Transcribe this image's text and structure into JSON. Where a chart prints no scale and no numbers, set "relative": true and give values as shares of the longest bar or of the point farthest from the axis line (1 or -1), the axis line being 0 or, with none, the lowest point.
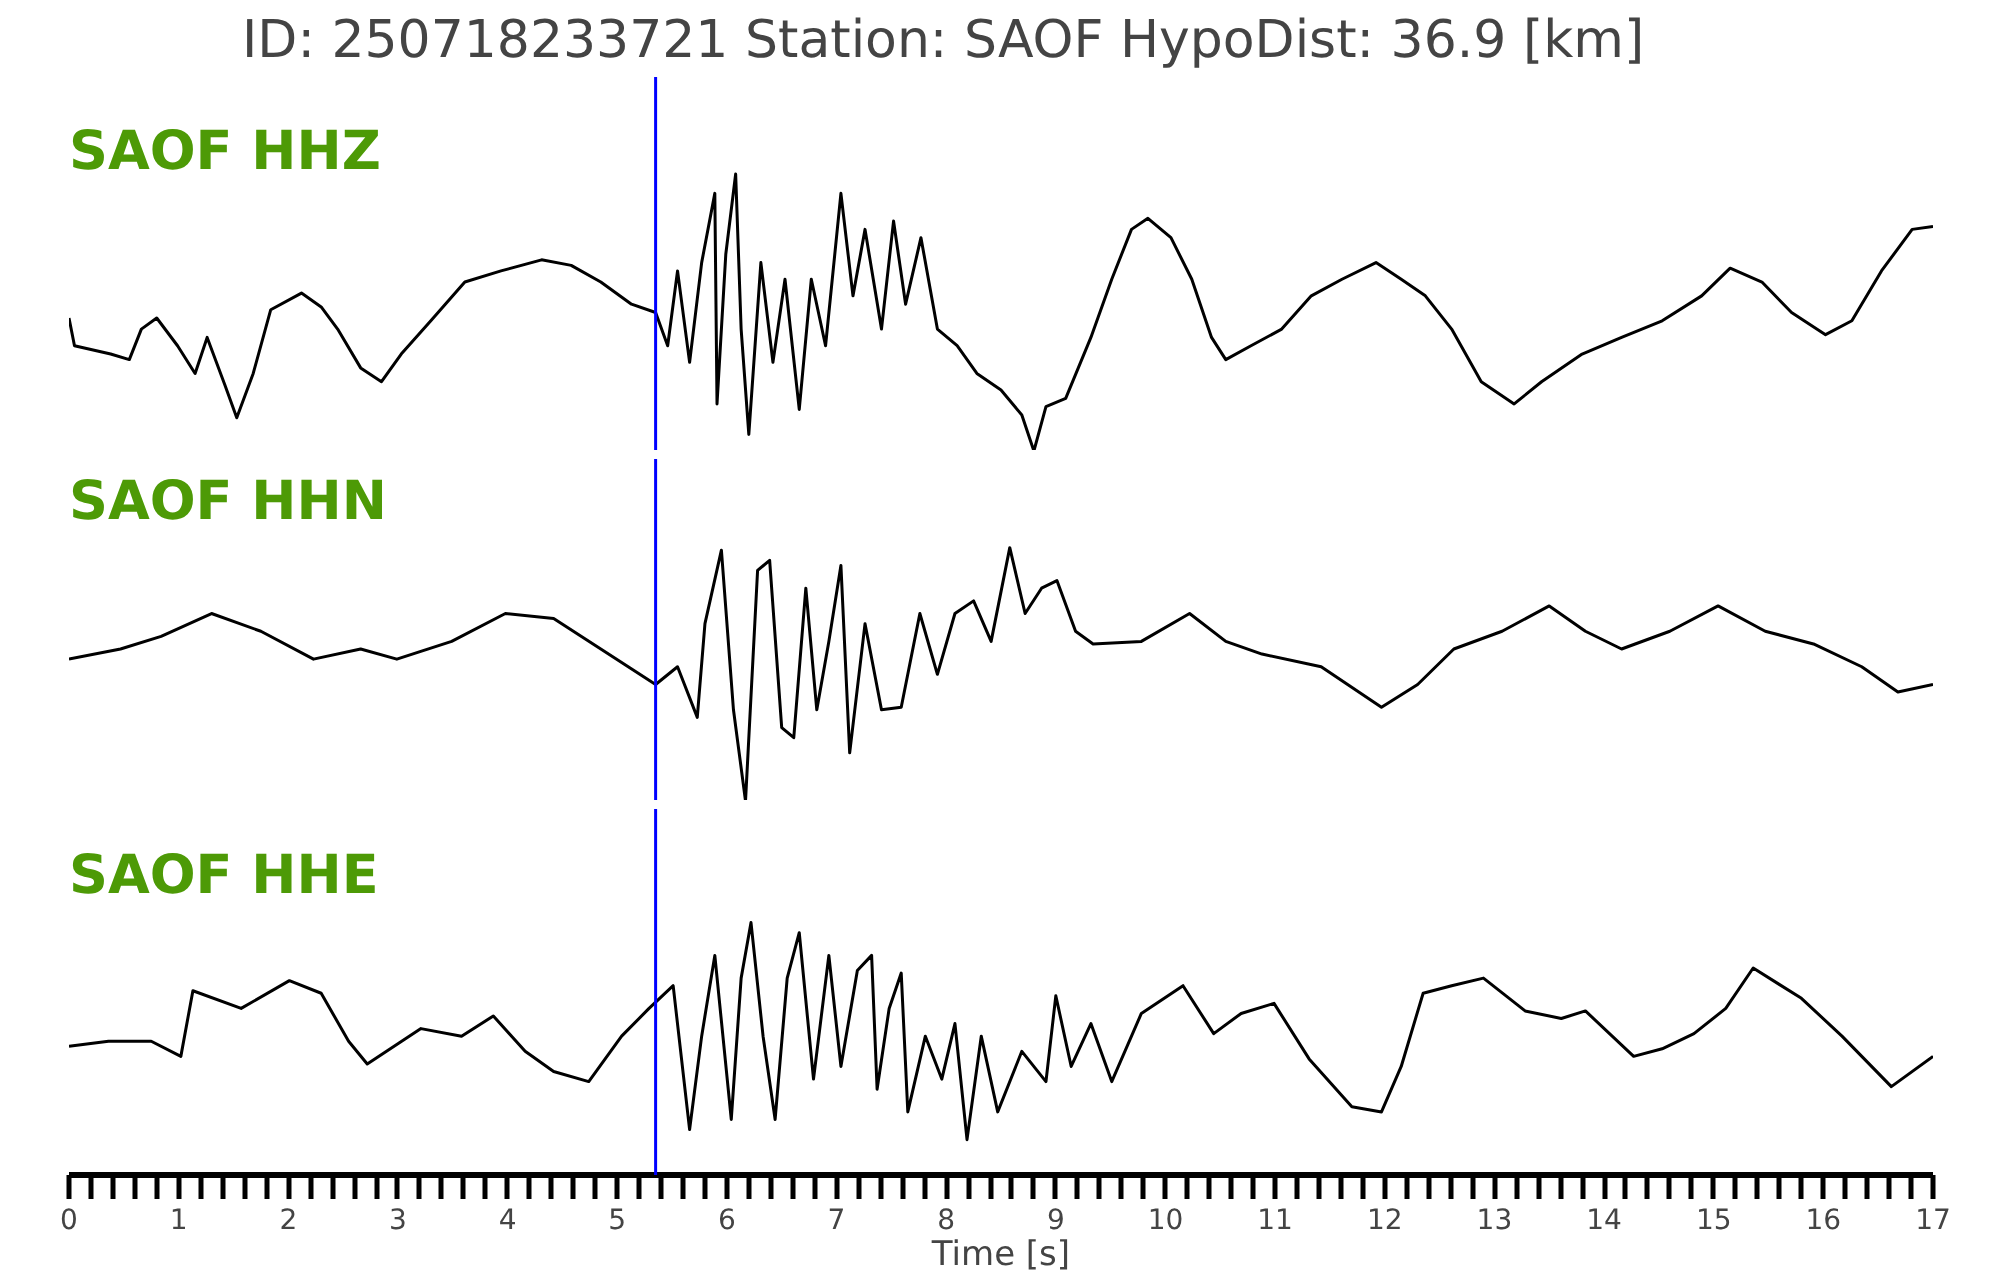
{
  "chart_data": [
    {
      "type": "line",
      "title": "ID: 250718233721   Station: SAOF   HypoDist:    36.9 [km]",
      "relative": true,
      "xlim": [
        0,
        17
      ],
      "tick_labels": false,
      "line_style": "solid",
      "marker": "none",
      "grid": false,
      "annotations": [
        "SAOF HHZ"
      ],
      "ref_lines": [
        {
          "axis": "x",
          "value": 5.35,
          "color": "#0000ff"
        }
      ],
      "series": [
        {
          "color": "#000000",
          "x": [
            0.0,
            0.05,
            0.38,
            0.55,
            0.66,
            0.8,
            0.99,
            1.15,
            1.26,
            1.42,
            1.53,
            1.68,
            1.84,
            2.12,
            2.3,
            2.45,
            2.66,
            2.85,
            3.03,
            3.3,
            3.61,
            3.94,
            4.31,
            4.58,
            4.85,
            5.13,
            5.35,
            5.46,
            5.55,
            5.66,
            5.77,
            5.89,
            5.91,
            5.99,
            6.08,
            6.13,
            6.2,
            6.31,
            6.42,
            6.53,
            6.66,
            6.77,
            6.9,
            7.04,
            7.15,
            7.26,
            7.41,
            7.52,
            7.63,
            7.77,
            7.92,
            8.1,
            8.28,
            8.5,
            8.69,
            8.8,
            8.91,
            9.09,
            9.32,
            9.51,
            9.69,
            9.84,
            10.05,
            10.24,
            10.42,
            10.55,
            10.78,
            11.06,
            11.33,
            11.61,
            11.92,
            12.15,
            12.37,
            12.61,
            12.88,
            13.18,
            13.43,
            13.8,
            14.16,
            14.53,
            14.89,
            15.15,
            15.44,
            15.71,
            16.02,
            16.26,
            16.53,
            16.81,
            17.0
          ],
          "values": [
            0.48,
            0.38,
            0.35,
            0.33,
            0.44,
            0.48,
            0.38,
            0.28,
            0.41,
            0.24,
            0.12,
            0.28,
            0.51,
            0.57,
            0.52,
            0.44,
            0.3,
            0.25,
            0.35,
            0.47,
            0.61,
            0.65,
            0.69,
            0.67,
            0.61,
            0.53,
            0.5,
            0.38,
            0.65,
            0.32,
            0.68,
            0.93,
            0.17,
            0.71,
            1.0,
            0.44,
            0.06,
            0.68,
            0.32,
            0.62,
            0.15,
            0.62,
            0.38,
            0.93,
            0.56,
            0.8,
            0.44,
            0.83,
            0.53,
            0.77,
            0.44,
            0.38,
            0.28,
            0.22,
            0.13,
            0.0,
            0.16,
            0.19,
            0.41,
            0.62,
            0.8,
            0.84,
            0.77,
            0.62,
            0.41,
            0.33,
            0.38,
            0.44,
            0.56,
            0.62,
            0.68,
            0.62,
            0.56,
            0.44,
            0.25,
            0.17,
            0.25,
            0.35,
            0.41,
            0.47,
            0.56,
            0.66,
            0.61,
            0.5,
            0.42,
            0.47,
            0.65,
            0.8,
            0.81
          ]
        }
      ]
    },
    {
      "type": "line",
      "relative": true,
      "xlim": [
        0,
        17
      ],
      "tick_labels": false,
      "line_style": "solid",
      "marker": "none",
      "grid": false,
      "annotations": [
        "SAOF HHN"
      ],
      "ref_lines": [
        {
          "axis": "x",
          "value": 5.35,
          "color": "#0000ff"
        }
      ],
      "series": [
        {
          "color": "#000000",
          "x": [
            0.0,
            0.47,
            0.84,
            1.3,
            1.75,
            2.23,
            2.66,
            2.99,
            3.49,
            3.98,
            4.42,
            4.85,
            5.35,
            5.55,
            5.73,
            5.8,
            5.95,
            6.06,
            6.17,
            6.28,
            6.39,
            6.5,
            6.61,
            6.72,
            6.82,
            6.93,
            7.04,
            7.12,
            7.26,
            7.41,
            7.59,
            7.76,
            7.92,
            8.08,
            8.25,
            8.41,
            8.58,
            8.72,
            8.87,
            9.01,
            9.18,
            9.34,
            9.78,
            10.22,
            10.55,
            10.88,
            11.42,
            11.97,
            12.3,
            12.63,
            13.07,
            13.5,
            13.83,
            14.16,
            14.6,
            15.04,
            15.47,
            15.91,
            16.35,
            16.68,
            17.0
          ],
          "values": [
            0.56,
            0.6,
            0.65,
            0.74,
            0.67,
            0.56,
            0.6,
            0.56,
            0.63,
            0.74,
            0.72,
            0.6,
            0.46,
            0.53,
            0.33,
            0.7,
            0.99,
            0.36,
            0.0,
            0.91,
            0.95,
            0.29,
            0.25,
            0.84,
            0.36,
            0.63,
            0.93,
            0.19,
            0.7,
            0.36,
            0.37,
            0.74,
            0.5,
            0.74,
            0.79,
            0.63,
            1.0,
            0.74,
            0.84,
            0.87,
            0.67,
            0.62,
            0.63,
            0.74,
            0.63,
            0.58,
            0.53,
            0.37,
            0.46,
            0.6,
            0.67,
            0.77,
            0.67,
            0.6,
            0.67,
            0.77,
            0.67,
            0.62,
            0.53,
            0.43,
            0.46
          ]
        }
      ]
    },
    {
      "type": "line",
      "relative": true,
      "xlim": [
        0,
        17
      ],
      "tick_labels": "x",
      "xlabel": "Time [s]",
      "line_style": "solid",
      "marker": "none",
      "annotations": [
        "SAOF HHE"
      ],
      "grid": false,
      "xticks": [
        0,
        {
          "value": 0.2,
          "label": null
        },
        {
          "value": 0.4,
          "label": null
        },
        {
          "value": 0.6,
          "label": null
        },
        {
          "value": 0.8,
          "label": null
        },
        1,
        {
          "value": 1.2,
          "label": null
        },
        {
          "value": 1.4,
          "label": null
        },
        {
          "value": 1.6,
          "label": null
        },
        {
          "value": 1.8,
          "label": null
        },
        2,
        {
          "value": 2.2,
          "label": null
        },
        {
          "value": 2.4,
          "label": null
        },
        {
          "value": 2.6,
          "label": null
        },
        {
          "value": 2.8,
          "label": null
        },
        3,
        {
          "value": 3.2,
          "label": null
        },
        {
          "value": 3.4,
          "label": null
        },
        {
          "value": 3.6,
          "label": null
        },
        {
          "value": 3.8,
          "label": null
        },
        4,
        {
          "value": 4.2,
          "label": null
        },
        {
          "value": 4.4,
          "label": null
        },
        {
          "value": 4.6,
          "label": null
        },
        {
          "value": 4.8,
          "label": null
        },
        5,
        {
          "value": 5.2,
          "label": null
        },
        {
          "value": 5.4,
          "label": null
        },
        {
          "value": 5.6,
          "label": null
        },
        {
          "value": 5.8,
          "label": null
        },
        6,
        {
          "value": 6.2,
          "label": null
        },
        {
          "value": 6.4,
          "label": null
        },
        {
          "value": 6.6,
          "label": null
        },
        {
          "value": 6.8,
          "label": null
        },
        7,
        {
          "value": 7.2,
          "label": null
        },
        {
          "value": 7.4,
          "label": null
        },
        {
          "value": 7.6,
          "label": null
        },
        {
          "value": 7.8,
          "label": null
        },
        8,
        {
          "value": 8.2,
          "label": null
        },
        {
          "value": 8.4,
          "label": null
        },
        {
          "value": 8.6,
          "label": null
        },
        {
          "value": 8.8,
          "label": null
        },
        9,
        {
          "value": 9.2,
          "label": null
        },
        {
          "value": 9.4,
          "label": null
        },
        {
          "value": 9.6,
          "label": null
        },
        {
          "value": 9.8,
          "label": null
        },
        10,
        {
          "value": 10.2,
          "label": null
        },
        {
          "value": 10.4,
          "label": null
        },
        {
          "value": 10.6,
          "label": null
        },
        {
          "value": 10.8,
          "label": null
        },
        11,
        {
          "value": 11.2,
          "label": null
        },
        {
          "value": 11.4,
          "label": null
        },
        {
          "value": 11.6,
          "label": null
        },
        {
          "value": 11.8,
          "label": null
        },
        12,
        {
          "value": 12.2,
          "label": null
        },
        {
          "value": 12.4,
          "label": null
        },
        {
          "value": 12.6,
          "label": null
        },
        {
          "value": 12.8,
          "label": null
        },
        13,
        {
          "value": 13.2,
          "label": null
        },
        {
          "value": 13.4,
          "label": null
        },
        {
          "value": 13.6,
          "label": null
        },
        {
          "value": 13.8,
          "label": null
        },
        14,
        {
          "value": 14.2,
          "label": null
        },
        {
          "value": 14.4,
          "label": null
        },
        {
          "value": 14.6,
          "label": null
        },
        {
          "value": 14.8,
          "label": null
        },
        15,
        {
          "value": 15.2,
          "label": null
        },
        {
          "value": 15.4,
          "label": null
        },
        {
          "value": 15.6,
          "label": null
        },
        {
          "value": 15.8,
          "label": null
        },
        16,
        {
          "value": 16.2,
          "label": null
        },
        {
          "value": 16.4,
          "label": null
        },
        {
          "value": 16.6,
          "label": null
        },
        {
          "value": 16.8,
          "label": null
        },
        17
      ],
      "ref_lines": [
        {
          "axis": "x",
          "value": 5.35,
          "color": "#0000ff"
        }
      ],
      "series": [
        {
          "color": "#000000",
          "x": [
            0.0,
            0.36,
            0.75,
            1.02,
            1.13,
            1.57,
            2.01,
            2.3,
            2.55,
            2.72,
            3.21,
            3.58,
            3.87,
            4.16,
            4.42,
            4.74,
            5.04,
            5.29,
            5.51,
            5.66,
            5.77,
            5.89,
            6.04,
            6.13,
            6.22,
            6.33,
            6.44,
            6.55,
            6.66,
            6.79,
            6.93,
            7.04,
            7.19,
            7.32,
            7.37,
            7.48,
            7.59,
            7.65,
            7.81,
            7.96,
            8.08,
            8.19,
            8.32,
            8.47,
            8.69,
            8.91,
            9.0,
            9.14,
            9.32,
            9.51,
            9.78,
            10.16,
            10.44,
            10.69,
            10.99,
            11.31,
            11.7,
            11.97,
            12.15,
            12.35,
            12.61,
            12.9,
            13.28,
            13.61,
            13.83,
            14.27,
            14.53,
            14.82,
            15.11,
            15.36,
            15.8,
            16.17,
            16.62,
            17.0
          ],
          "values": [
            0.51,
            0.53,
            0.53,
            0.47,
            0.73,
            0.66,
            0.77,
            0.72,
            0.53,
            0.44,
            0.58,
            0.55,
            0.63,
            0.49,
            0.41,
            0.37,
            0.55,
            0.66,
            0.75,
            0.18,
            0.55,
            0.87,
            0.22,
            0.78,
            1.0,
            0.55,
            0.22,
            0.78,
            0.96,
            0.38,
            0.87,
            0.43,
            0.81,
            0.87,
            0.34,
            0.66,
            0.8,
            0.25,
            0.55,
            0.38,
            0.6,
            0.14,
            0.55,
            0.25,
            0.49,
            0.37,
            0.71,
            0.43,
            0.6,
            0.37,
            0.64,
            0.75,
            0.56,
            0.64,
            0.68,
            0.46,
            0.27,
            0.25,
            0.43,
            0.72,
            0.75,
            0.78,
            0.65,
            0.62,
            0.65,
            0.47,
            0.5,
            0.56,
            0.66,
            0.82,
            0.7,
            0.55,
            0.35,
            0.47
          ]
        }
      ]
    }
  ]
}
